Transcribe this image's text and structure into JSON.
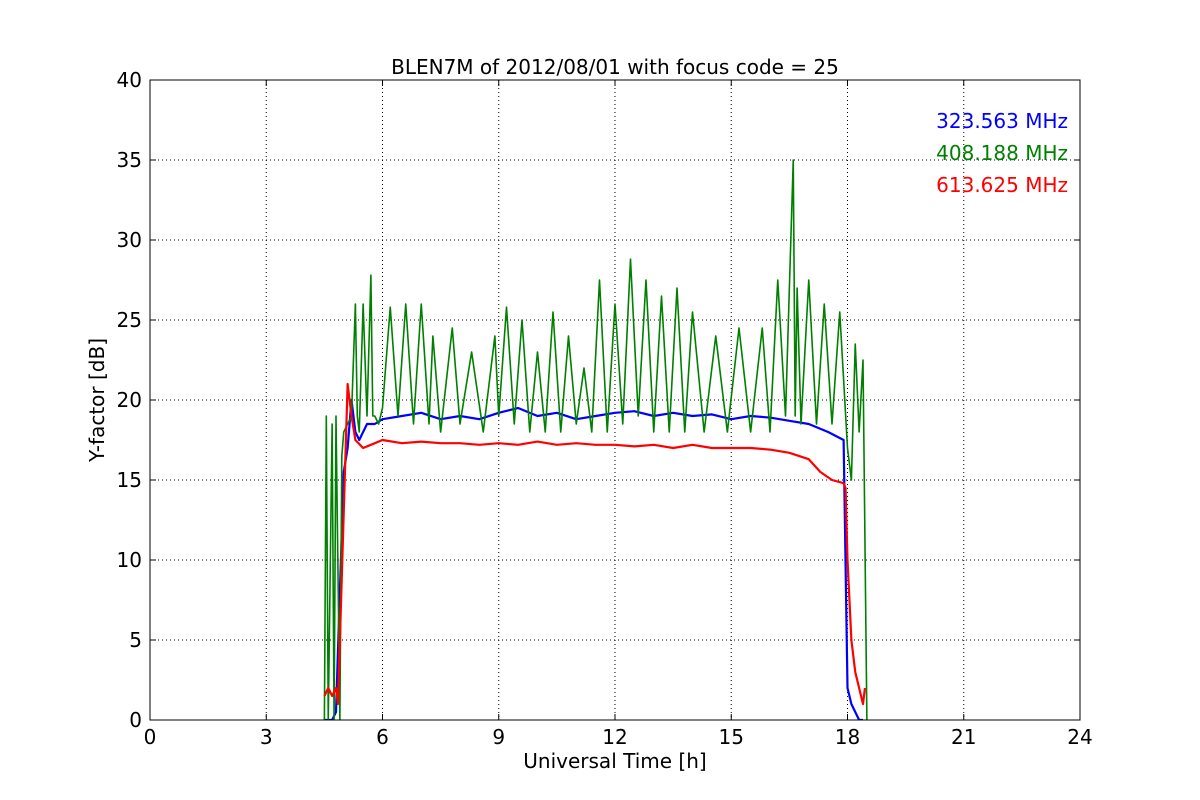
{
  "chart_data": {
    "type": "line",
    "title": "BLEN7M of 2012/08/01 with focus code = 25",
    "xlabel": "Universal Time [h]",
    "ylabel": "Y-factor [dB]",
    "xlim": [
      0,
      24
    ],
    "ylim": [
      0,
      40
    ],
    "xticks": [
      0,
      3,
      6,
      9,
      12,
      15,
      18,
      21,
      24
    ],
    "yticks": [
      0,
      5,
      10,
      15,
      20,
      25,
      30,
      35,
      40
    ],
    "grid": true,
    "legend_placement": "top-right",
    "series": [
      {
        "name": "323.563 MHz",
        "color": "#0000ff",
        "x": [
          4.5,
          4.7,
          4.8,
          4.9,
          5.0,
          5.1,
          5.2,
          5.3,
          5.4,
          5.6,
          5.8,
          6.0,
          6.5,
          7.0,
          7.5,
          8.0,
          8.5,
          9.0,
          9.5,
          10.0,
          10.5,
          11.0,
          11.5,
          12.0,
          12.5,
          13.0,
          13.5,
          14.0,
          14.5,
          15.0,
          15.5,
          16.0,
          16.5,
          17.0,
          17.5,
          17.9,
          18.0,
          18.1,
          18.2,
          18.3,
          18.4
        ],
        "y": [
          0,
          0,
          0.5,
          8,
          15.5,
          17,
          20,
          18,
          17.5,
          18.5,
          18.5,
          18.8,
          19,
          19.2,
          18.8,
          19,
          18.8,
          19.2,
          19.5,
          19,
          19.2,
          18.8,
          19,
          19.2,
          19.3,
          19,
          19.2,
          19,
          19.1,
          18.8,
          19,
          18.9,
          18.7,
          18.5,
          18,
          17.5,
          2,
          1,
          0.5,
          0,
          0
        ]
      },
      {
        "name": "408.188 MHz",
        "color": "#008000",
        "x": [
          4.5,
          4.55,
          4.6,
          4.7,
          4.75,
          4.8,
          4.9,
          4.95,
          5.0,
          5.1,
          5.2,
          5.3,
          5.35,
          5.4,
          5.5,
          5.6,
          5.7,
          5.75,
          5.8,
          5.9,
          6.0,
          6.2,
          6.4,
          6.6,
          6.8,
          7.0,
          7.2,
          7.3,
          7.5,
          7.8,
          8.0,
          8.3,
          8.6,
          8.9,
          9.0,
          9.2,
          9.4,
          9.6,
          9.8,
          10.0,
          10.2,
          10.4,
          10.6,
          10.8,
          11.0,
          11.2,
          11.4,
          11.6,
          11.8,
          12.0,
          12.2,
          12.4,
          12.6,
          12.8,
          13.0,
          13.2,
          13.4,
          13.6,
          13.8,
          14.0,
          14.3,
          14.6,
          14.9,
          15.2,
          15.5,
          15.8,
          16.0,
          16.2,
          16.4,
          16.6,
          16.65,
          16.7,
          16.8,
          17.0,
          17.2,
          17.4,
          17.6,
          17.8,
          18.0,
          18.1,
          18.2,
          18.3,
          18.4,
          18.5
        ],
        "y": [
          0,
          19,
          0,
          18.5,
          0,
          19,
          0,
          16.5,
          18,
          18.5,
          19,
          26,
          19,
          18,
          26,
          19,
          27.8,
          19,
          19,
          18.5,
          19.5,
          25.8,
          19,
          26,
          18.5,
          26,
          18.5,
          24,
          18,
          24.5,
          18.5,
          23,
          18,
          24,
          19,
          25.8,
          18.5,
          25,
          18,
          23,
          18,
          25.5,
          18,
          24,
          18.5,
          22,
          18,
          27.5,
          18,
          26,
          18.5,
          28.8,
          19,
          27.5,
          18,
          26.5,
          18,
          27,
          18,
          25.5,
          18,
          24,
          18,
          24.5,
          18,
          24.5,
          18,
          27.5,
          19,
          35,
          19,
          27,
          18.5,
          27.5,
          18.5,
          26,
          18.5,
          25.5,
          17,
          15,
          23.5,
          18,
          22.5,
          0
        ]
      },
      {
        "name": "613.625 MHz",
        "color": "#ff0000",
        "x": [
          4.5,
          4.6,
          4.7,
          4.8,
          4.85,
          4.9,
          5.0,
          5.05,
          5.1,
          5.2,
          5.3,
          5.5,
          5.7,
          6.0,
          6.5,
          7.0,
          7.5,
          8.0,
          8.5,
          9.0,
          9.5,
          10.0,
          10.5,
          11.0,
          11.5,
          12.0,
          12.5,
          13.0,
          13.5,
          14.0,
          14.5,
          15.0,
          15.5,
          16.0,
          16.5,
          17.0,
          17.3,
          17.6,
          17.9,
          17.95,
          18.0,
          18.1,
          18.2,
          18.3,
          18.4,
          18.45
        ],
        "y": [
          1.5,
          2,
          1.5,
          2,
          1,
          5,
          13,
          17,
          21,
          19,
          17.5,
          17,
          17.2,
          17.5,
          17.3,
          17.4,
          17.3,
          17.3,
          17.2,
          17.3,
          17.2,
          17.4,
          17.2,
          17.3,
          17.2,
          17.2,
          17.1,
          17.2,
          17.0,
          17.2,
          17.0,
          17.0,
          17.0,
          16.9,
          16.7,
          16.3,
          15.5,
          15.0,
          14.8,
          14.5,
          10,
          5,
          3,
          2,
          1,
          2
        ]
      }
    ]
  }
}
